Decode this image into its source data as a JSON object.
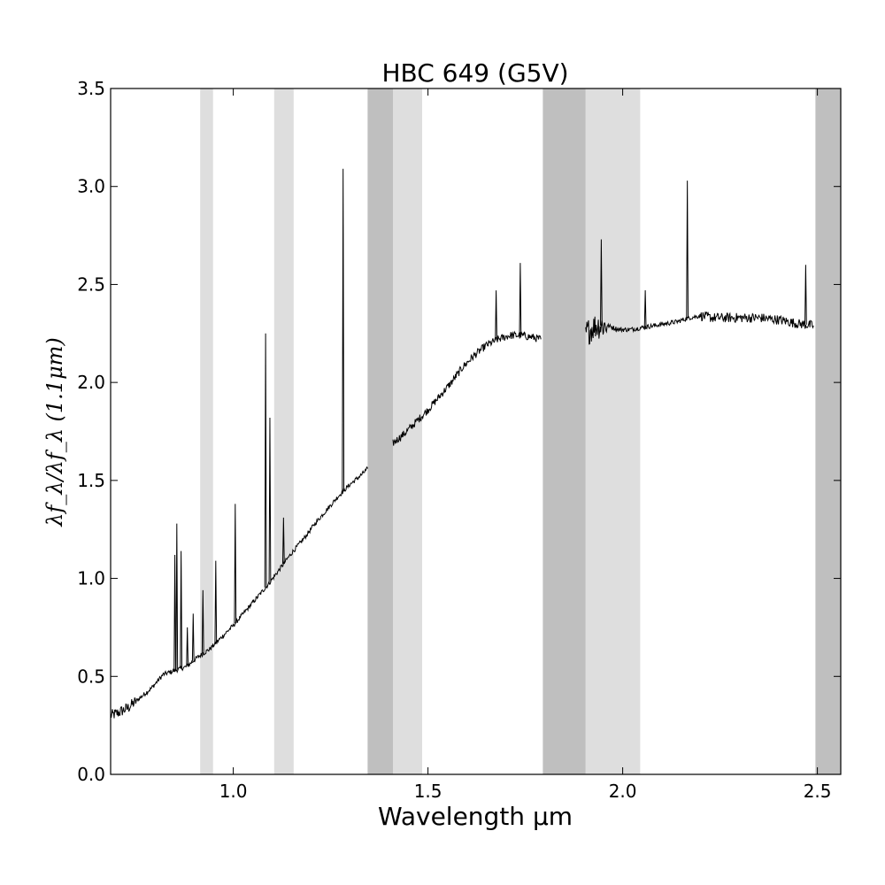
{
  "chart_data": {
    "type": "line",
    "title": "HBC 649 (G5V)",
    "xlabel": "Wavelength μm",
    "ylabel": "λf_λ/λf_λ (1.1μm)",
    "xlim": [
      0.685,
      2.56
    ],
    "ylim": [
      0,
      3.5
    ],
    "xticks": [
      {
        "value": 1.0,
        "label": "1.0"
      },
      {
        "value": 1.5,
        "label": "1.5"
      },
      {
        "value": 2.0,
        "label": "2.0"
      },
      {
        "value": 2.5,
        "label": "2.5"
      }
    ],
    "yticks": [
      {
        "value": 0.0,
        "label": "0.0"
      },
      {
        "value": 0.5,
        "label": "0.5"
      },
      {
        "value": 1.0,
        "label": "1.0"
      },
      {
        "value": 1.5,
        "label": "1.5"
      },
      {
        "value": 2.0,
        "label": "2.0"
      },
      {
        "value": 2.5,
        "label": "2.5"
      },
      {
        "value": 3.0,
        "label": "3.0"
      },
      {
        "value": 3.5,
        "label": "3.5"
      }
    ],
    "shaded_bands": [
      {
        "x0": 0.915,
        "x1": 0.948,
        "shade": "light",
        "color": "#dedede"
      },
      {
        "x0": 1.105,
        "x1": 1.155,
        "shade": "light",
        "color": "#dedede"
      },
      {
        "x0": 1.345,
        "x1": 1.41,
        "shade": "dark",
        "color": "#bfbfbf"
      },
      {
        "x0": 1.41,
        "x1": 1.485,
        "shade": "light",
        "color": "#dedede"
      },
      {
        "x0": 1.795,
        "x1": 1.905,
        "shade": "dark",
        "color": "#bfbfbf"
      },
      {
        "x0": 1.905,
        "x1": 2.045,
        "shade": "light",
        "color": "#dedede"
      },
      {
        "x0": 2.495,
        "x1": 2.56,
        "shade": "dark",
        "color": "#bfbfbf"
      }
    ],
    "series": [
      {
        "color": "#000000",
        "segments": [
          [
            [
              0.685,
              0.3
            ],
            [
              0.7,
              0.31
            ],
            [
              0.73,
              0.34
            ],
            [
              0.76,
              0.39
            ],
            [
              0.79,
              0.44
            ],
            [
              0.82,
              0.51
            ],
            [
              0.85,
              0.53
            ],
            [
              0.88,
              0.55
            ],
            [
              0.91,
              0.6
            ],
            [
              0.94,
              0.64
            ],
            [
              0.97,
              0.7
            ],
            [
              1.0,
              0.76
            ],
            [
              1.03,
              0.83
            ],
            [
              1.06,
              0.9
            ],
            [
              1.09,
              0.97
            ],
            [
              1.12,
              1.05
            ],
            [
              1.15,
              1.13
            ],
            [
              1.18,
              1.2
            ],
            [
              1.21,
              1.28
            ],
            [
              1.24,
              1.35
            ],
            [
              1.27,
              1.42
            ],
            [
              1.3,
              1.48
            ],
            [
              1.33,
              1.53
            ],
            [
              1.345,
              1.56
            ]
          ],
          [
            [
              1.41,
              1.69
            ],
            [
              1.44,
              1.74
            ],
            [
              1.47,
              1.8
            ],
            [
              1.5,
              1.86
            ],
            [
              1.53,
              1.93
            ],
            [
              1.56,
              2.0
            ],
            [
              1.59,
              2.08
            ],
            [
              1.62,
              2.14
            ],
            [
              1.65,
              2.19
            ],
            [
              1.68,
              2.22
            ],
            [
              1.71,
              2.24
            ],
            [
              1.74,
              2.24
            ],
            [
              1.77,
              2.23
            ],
            [
              1.79,
              2.22
            ]
          ],
          [
            [
              1.905,
              2.25
            ],
            [
              1.93,
              2.29
            ],
            [
              1.96,
              2.29
            ],
            [
              1.99,
              2.27
            ],
            [
              2.02,
              2.27
            ],
            [
              2.05,
              2.28
            ],
            [
              2.08,
              2.29
            ],
            [
              2.11,
              2.3
            ],
            [
              2.14,
              2.31
            ],
            [
              2.17,
              2.33
            ],
            [
              2.2,
              2.34
            ],
            [
              2.23,
              2.33
            ],
            [
              2.26,
              2.33
            ],
            [
              2.3,
              2.33
            ],
            [
              2.35,
              2.33
            ],
            [
              2.4,
              2.32
            ],
            [
              2.45,
              2.3
            ],
            [
              2.49,
              2.29
            ]
          ]
        ],
        "emission_lines": [
          {
            "x": 0.85,
            "peak": 1.12
          },
          {
            "x": 0.855,
            "peak": 1.28
          },
          {
            "x": 0.866,
            "peak": 1.14
          },
          {
            "x": 0.882,
            "peak": 0.75
          },
          {
            "x": 0.897,
            "peak": 0.82
          },
          {
            "x": 0.922,
            "peak": 0.94
          },
          {
            "x": 0.955,
            "peak": 1.09
          },
          {
            "x": 1.005,
            "peak": 1.38
          },
          {
            "x": 1.083,
            "peak": 2.25
          },
          {
            "x": 1.094,
            "peak": 1.82
          },
          {
            "x": 1.129,
            "peak": 1.31
          },
          {
            "x": 1.282,
            "peak": 3.09
          },
          {
            "x": 1.675,
            "peak": 2.47
          },
          {
            "x": 1.737,
            "peak": 2.61
          },
          {
            "x": 1.945,
            "peak": 2.73
          },
          {
            "x": 2.058,
            "peak": 2.47
          },
          {
            "x": 2.166,
            "peak": 3.03
          },
          {
            "x": 2.47,
            "peak": 2.6
          }
        ]
      }
    ]
  }
}
